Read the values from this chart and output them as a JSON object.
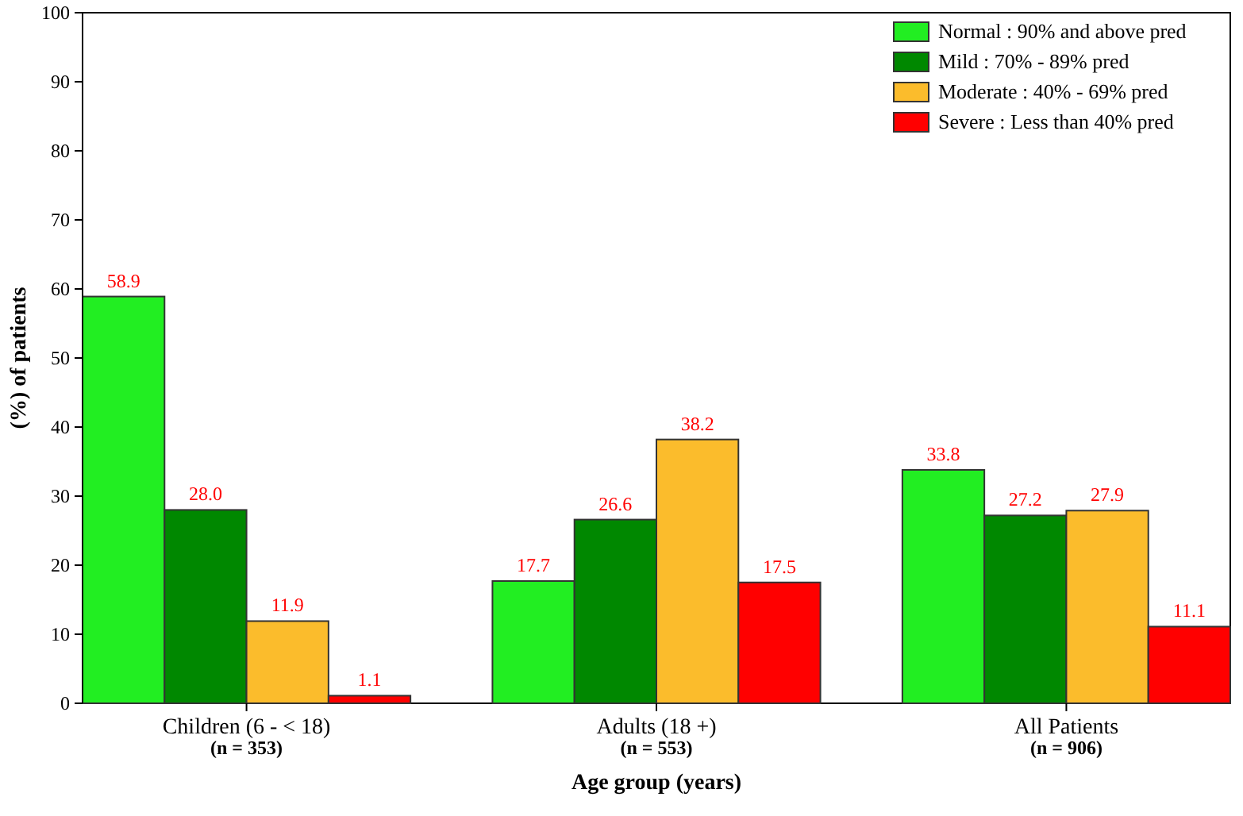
{
  "chart_data": {
    "type": "bar",
    "xlabel": "Age group (years)",
    "ylabel": "(%) of patients",
    "categories": [
      "Children (6 - < 18)\n(n = 353)",
      "Adults (18 +)\n(n = 553)",
      "All Patients\n(n = 906)"
    ],
    "series": [
      {
        "name": "Normal : 90% and above pred",
        "color": "#22ee22",
        "values": [
          58.9,
          17.7,
          33.8
        ]
      },
      {
        "name": "Mild : 70% - 89% pred",
        "color": "#008800",
        "values": [
          28.0,
          26.6,
          27.2
        ]
      },
      {
        "name": "Moderate : 40% - 69% pred",
        "color": "#fbbc2c",
        "values": [
          11.9,
          38.2,
          27.9
        ]
      },
      {
        "name": "Severe : Less than 40% pred",
        "color": "#ff0000",
        "values": [
          1.1,
          17.5,
          11.1
        ]
      }
    ],
    "value_labels": [
      [
        "58.9",
        "17.7",
        "33.8"
      ],
      [
        "28.0",
        "26.6",
        "27.2"
      ],
      [
        "11.9",
        "38.2",
        "27.9"
      ],
      [
        "1.1",
        "17.5",
        "11.1"
      ]
    ],
    "ylim": [
      0,
      100
    ],
    "yticks": [
      0,
      10,
      20,
      30,
      40,
      50,
      60,
      70,
      80,
      90,
      100
    ],
    "grid": false,
    "legend": "top right"
  }
}
